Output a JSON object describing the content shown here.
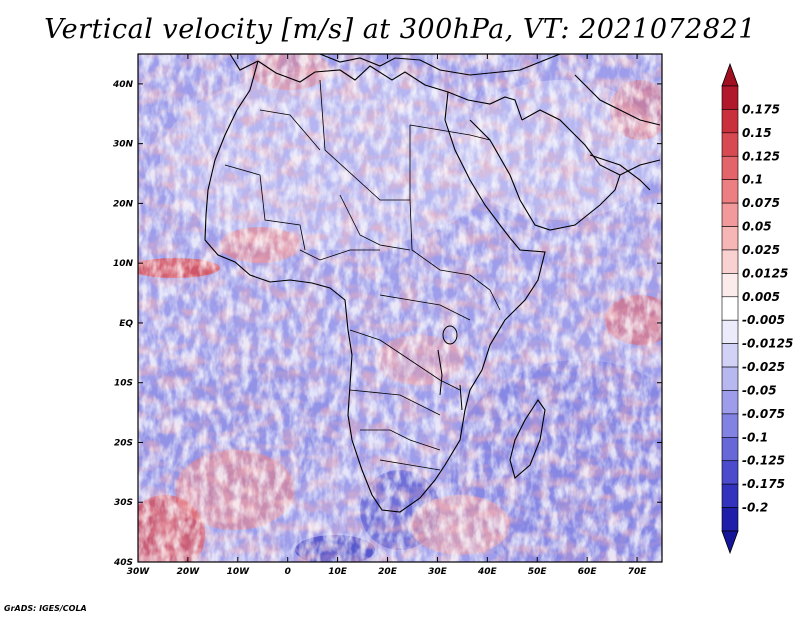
{
  "title": "Vertical velocity [m/s] at 300hPa, VT: 2021072821",
  "credit": "GrADS: IGES/COLA",
  "map": {
    "lon_range": [
      -30,
      75
    ],
    "lat_range": [
      -40,
      45
    ],
    "x_ticks": [
      {
        "value": -30,
        "label": "30W"
      },
      {
        "value": -20,
        "label": "20W"
      },
      {
        "value": -10,
        "label": "10W"
      },
      {
        "value": 0,
        "label": "0"
      },
      {
        "value": 10,
        "label": "10E"
      },
      {
        "value": 20,
        "label": "20E"
      },
      {
        "value": 30,
        "label": "30E"
      },
      {
        "value": 40,
        "label": "40E"
      },
      {
        "value": 50,
        "label": "50E"
      },
      {
        "value": 60,
        "label": "60E"
      },
      {
        "value": 70,
        "label": "70E"
      }
    ],
    "y_ticks": [
      {
        "value": 40,
        "label": "40N"
      },
      {
        "value": 30,
        "label": "30N"
      },
      {
        "value": 20,
        "label": "20N"
      },
      {
        "value": 10,
        "label": "10N"
      },
      {
        "value": 0,
        "label": "EQ"
      },
      {
        "value": -10,
        "label": "10S"
      },
      {
        "value": -20,
        "label": "20S"
      },
      {
        "value": -30,
        "label": "30S"
      },
      {
        "value": -40,
        "label": "40S"
      }
    ]
  },
  "colorbar": {
    "labels": [
      "0.175",
      "0.15",
      "0.125",
      "0.1",
      "0.075",
      "0.05",
      "0.025",
      "0.0125",
      "0.005",
      "-0.005",
      "-0.0125",
      "-0.025",
      "-0.05",
      "-0.075",
      "-0.1",
      "-0.125",
      "-0.175",
      "-0.2"
    ],
    "colors": [
      "#b2182b",
      "#c9303c",
      "#d84a52",
      "#e3646a",
      "#ec7f82",
      "#f29a9b",
      "#f6b6b6",
      "#f9d1d1",
      "#fcebeb",
      "#ffffff",
      "#ebebfb",
      "#d2d2f7",
      "#b8b8f1",
      "#9d9deb",
      "#8282e2",
      "#6767d8",
      "#4b4bcc",
      "#3232bd",
      "#1e1ea9"
    ],
    "top_color": "#a01020",
    "bottom_color": "#15159a"
  }
}
